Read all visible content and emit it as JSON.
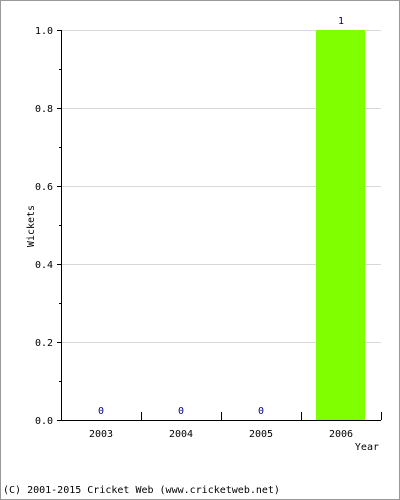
{
  "chart_data": {
    "type": "bar",
    "categories": [
      "2003",
      "2004",
      "2005",
      "2006"
    ],
    "values": [
      0,
      0,
      0,
      1
    ],
    "data_labels": [
      "0",
      "0",
      "0",
      "1"
    ],
    "xlabel": "Year",
    "ylabel": "Wickets",
    "ylim": [
      0,
      1
    ],
    "yticks": [
      "0.0",
      "0.2",
      "0.4",
      "0.6",
      "0.8",
      "1.0"
    ],
    "grid": true,
    "bar_color": "#80ff00",
    "label_color": "#000080"
  },
  "footer": {
    "copyright": "(C) 2001-2015 Cricket Web (www.cricketweb.net)"
  }
}
